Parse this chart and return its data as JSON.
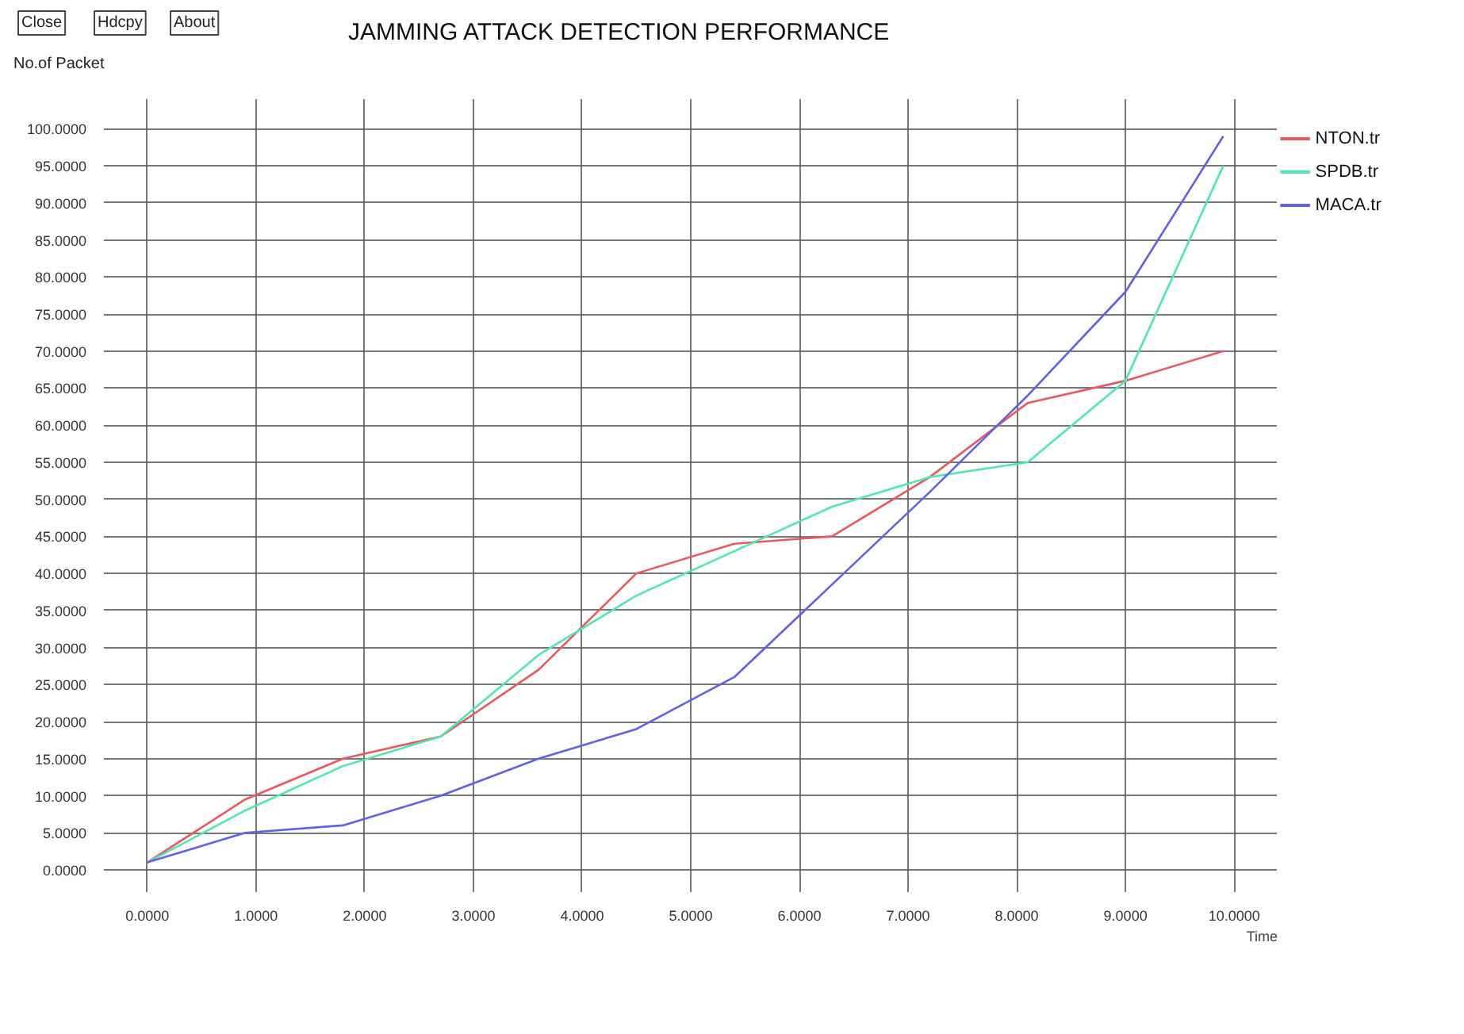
{
  "chart_data": {
    "type": "line",
    "title": "JAMMING ATTACK DETECTION PERFORMANCE",
    "xlabel": "Time",
    "ylabel": "No.of Packet",
    "annotations": [
      "Close",
      "Hdcpy",
      "About"
    ],
    "x": [
      0,
      0.9,
      1.8,
      2.7,
      3.6,
      4.5,
      5.4,
      6.3,
      7.2,
      8.1,
      9.0,
      9.9
    ],
    "series": [
      {
        "name": "NTON.tr",
        "color": "#e8585c",
        "values": [
          1,
          9.5,
          15,
          18,
          27,
          40,
          44,
          45,
          53,
          63,
          66,
          70
        ]
      },
      {
        "name": "SPDB.tr",
        "color": "#4de8b0",
        "values": [
          1,
          8,
          14,
          18,
          29,
          37,
          43,
          49,
          53,
          55,
          66,
          95
        ]
      },
      {
        "name": "MACA.tr",
        "color": "#6060e8",
        "values": [
          1,
          5,
          6,
          10,
          15,
          19,
          26,
          38.5,
          51,
          64,
          78,
          99
        ]
      }
    ],
    "xlim": [
      -0.4,
      10.4
    ],
    "ylim": [
      -3,
      104
    ],
    "xticks": [
      {
        "value": 0,
        "label": "0.0000"
      },
      {
        "value": 1,
        "label": "1.0000"
      },
      {
        "value": 2,
        "label": "2.0000"
      },
      {
        "value": 3,
        "label": "3.0000"
      },
      {
        "value": 4,
        "label": "4.0000"
      },
      {
        "value": 5,
        "label": "5.0000"
      },
      {
        "value": 6,
        "label": "6.0000"
      },
      {
        "value": 7,
        "label": "7.0000"
      },
      {
        "value": 8,
        "label": "8.0000"
      },
      {
        "value": 9,
        "label": "9.0000"
      },
      {
        "value": 10,
        "label": "10.0000"
      }
    ],
    "yticks": [
      {
        "value": 0,
        "label": "0.0000"
      },
      {
        "value": 5,
        "label": "5.0000"
      },
      {
        "value": 10,
        "label": "10.0000"
      },
      {
        "value": 15,
        "label": "15.0000"
      },
      {
        "value": 20,
        "label": "20.0000"
      },
      {
        "value": 25,
        "label": "25.0000"
      },
      {
        "value": 30,
        "label": "30.0000"
      },
      {
        "value": 35,
        "label": "35.0000"
      },
      {
        "value": 40,
        "label": "40.0000"
      },
      {
        "value": 45,
        "label": "45.0000"
      },
      {
        "value": 50,
        "label": "50.0000"
      },
      {
        "value": 55,
        "label": "55.0000"
      },
      {
        "value": 60,
        "label": "60.0000"
      },
      {
        "value": 65,
        "label": "65.0000"
      },
      {
        "value": 70,
        "label": "70.0000"
      },
      {
        "value": 75,
        "label": "75.0000"
      },
      {
        "value": 80,
        "label": "80.0000"
      },
      {
        "value": 85,
        "label": "85.0000"
      },
      {
        "value": 90,
        "label": "90.0000"
      },
      {
        "value": 95,
        "label": "95.0000"
      },
      {
        "value": 100,
        "label": "100.0000"
      }
    ],
    "grid": true,
    "legend": "top right",
    "line_style": "solid"
  }
}
